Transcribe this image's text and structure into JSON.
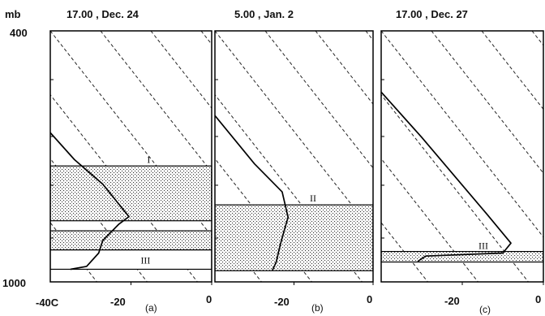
{
  "figure": {
    "y_axis_unit": "mb",
    "y_tick_top": "400",
    "y_tick_bottom": "1000"
  },
  "chart_data": [
    {
      "type": "line",
      "title": "17.00 , Dec. 24",
      "panel_label": "(a)",
      "x_tick_labels": [
        "-40C",
        "-20",
        "0"
      ],
      "xlim": [
        -40,
        0
      ],
      "ylim": [
        1000,
        400
      ],
      "y_scale": "log",
      "background": "dry adiabats (dashed)",
      "series": [
        {
          "points": [
            {
              "t": -40,
              "p": 580
            },
            {
              "t": -34,
              "p": 640
            },
            {
              "t": -27,
              "p": 700
            },
            {
              "t": -20.5,
              "p": 788
            },
            {
              "t": -23,
              "p": 810
            },
            {
              "t": -27,
              "p": 860
            },
            {
              "t": -28,
              "p": 900
            },
            {
              "t": -31,
              "p": 945
            },
            {
              "t": -35,
              "p": 955
            }
          ]
        }
      ],
      "layers": [
        {
          "label": "I",
          "p_top": 655,
          "p_bottom": 800,
          "shaded": true
        },
        {
          "label": "",
          "p_top": 830,
          "p_bottom": 890,
          "shaded": true
        },
        {
          "label": "III",
          "p_top": 890,
          "p_bottom": 955,
          "shaded": false
        }
      ]
    },
    {
      "type": "line",
      "title": "5.00 , Jan. 2",
      "panel_label": "(b)",
      "x_tick_labels": [
        "-20",
        "0"
      ],
      "xlim": [
        -40,
        0
      ],
      "ylim": [
        1000,
        400
      ],
      "y_scale": "log",
      "background": "dry adiabats (dashed)",
      "series": [
        {
          "points": [
            {
              "t": -40,
              "p": 545
            },
            {
              "t": -30,
              "p": 650
            },
            {
              "t": -23,
              "p": 720
            },
            {
              "t": -21.5,
              "p": 790
            },
            {
              "t": -22.5,
              "p": 830
            },
            {
              "t": -23.5,
              "p": 875
            },
            {
              "t": -24.5,
              "p": 930
            },
            {
              "t": -25.5,
              "p": 960
            }
          ]
        }
      ],
      "layers": [
        {
          "label": "II",
          "p_top": 755,
          "p_bottom": 960,
          "shaded": true
        }
      ]
    },
    {
      "type": "line",
      "title": "17.00 , Dec. 27",
      "panel_label": "(c)",
      "x_tick_labels": [
        "-20",
        "0"
      ],
      "xlim": [
        -40,
        0
      ],
      "ylim": [
        1000,
        400
      ],
      "y_scale": "log",
      "background": "dry adiabats (dashed)",
      "series": [
        {
          "points": [
            {
              "t": -40,
              "p": 500
            },
            {
              "t": -30,
              "p": 590
            },
            {
              "t": -14,
              "p": 780
            },
            {
              "t": -8,
              "p": 868
            },
            {
              "t": -10,
              "p": 900
            },
            {
              "t": -29,
              "p": 910
            },
            {
              "t": -31,
              "p": 928
            }
          ]
        }
      ],
      "layers": [
        {
          "label": "III",
          "p_top": 895,
          "p_bottom": 930,
          "shaded": true
        }
      ]
    }
  ]
}
